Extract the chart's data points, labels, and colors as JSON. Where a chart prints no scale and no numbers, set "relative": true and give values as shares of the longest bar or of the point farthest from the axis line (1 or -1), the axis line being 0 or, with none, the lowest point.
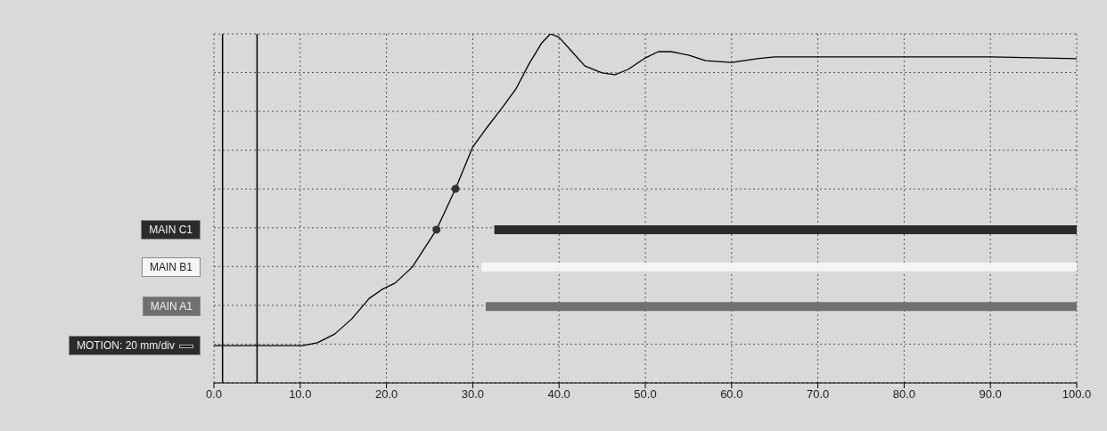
{
  "chart_data": {
    "type": "line",
    "relative": true,
    "xlim": [
      0,
      100
    ],
    "xticks": [
      {
        "value": 0,
        "label": "0.0"
      },
      {
        "value": 10,
        "label": "10.0"
      },
      {
        "value": 20,
        "label": "20.0"
      },
      {
        "value": 30,
        "label": "30.0"
      },
      {
        "value": 40,
        "label": "40.0"
      },
      {
        "value": 50,
        "label": "50.0"
      },
      {
        "value": 60,
        "label": "60.0"
      },
      {
        "value": 70,
        "label": "70.0"
      },
      {
        "value": 80,
        "label": "80.0"
      },
      {
        "value": 90,
        "label": "90.0"
      },
      {
        "value": 100,
        "label": "100.0"
      }
    ],
    "grid": true,
    "ref_lines": [
      {
        "axis": "x",
        "value": 1,
        "color": "#000000"
      },
      {
        "axis": "x",
        "value": 5,
        "color": "#000000"
      }
    ],
    "series": [
      {
        "name": "MOTION: 20 mm/div",
        "color": "#000000",
        "x": [
          0,
          10.3,
          12,
          14,
          16,
          18,
          19.5,
          21,
          23,
          25.8,
          28,
          30,
          31.5,
          33.5,
          35,
          36.5,
          38,
          39,
          40,
          41.5,
          43,
          45,
          46.5,
          48,
          50,
          51.5,
          53,
          55,
          57,
          60,
          63,
          65,
          70,
          80,
          90,
          100
        ],
        "values": [
          0.107,
          0.107,
          0.115,
          0.14,
          0.184,
          0.242,
          0.268,
          0.286,
          0.332,
          0.439,
          0.556,
          0.676,
          0.727,
          0.791,
          0.842,
          0.913,
          0.974,
          1,
          0.99,
          0.949,
          0.908,
          0.888,
          0.883,
          0.898,
          0.931,
          0.949,
          0.949,
          0.939,
          0.923,
          0.918,
          0.929,
          0.934,
          0.934,
          0.934,
          0.934,
          0.929
        ]
      },
      {
        "name": "MAIN C1",
        "type": "line",
        "color": "#2b2b2b",
        "x": [
          32.5,
          100
        ],
        "values": [
          0.439,
          0.439
        ]
      },
      {
        "name": "MAIN B1",
        "type": "line",
        "color": "#f5f5f5",
        "x": [
          31,
          100
        ],
        "values": [
          0.332,
          0.332
        ]
      },
      {
        "name": "MAIN A1",
        "type": "line",
        "color": "#707070",
        "x": [
          31.5,
          100
        ],
        "values": [
          0.219,
          0.219
        ]
      },
      {
        "type": "scatter",
        "color": "#333333",
        "marker": "circle",
        "x": [
          25.8,
          28
        ],
        "values": [
          0.439,
          0.556
        ]
      }
    ]
  }
}
